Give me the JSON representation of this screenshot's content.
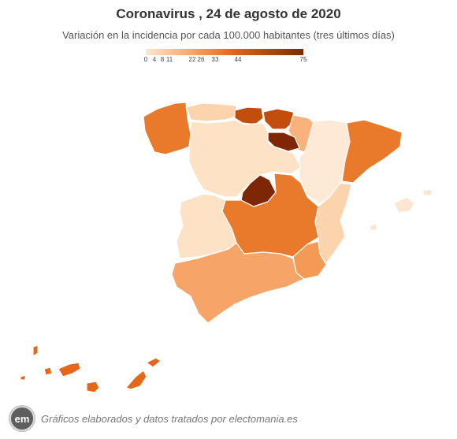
{
  "title": "Coronavirus , 24 de agosto de 2020",
  "subtitle": "Variación en la incidencia por cada 100.000 habitantes (tres últimos días)",
  "legend": {
    "min": 0,
    "max": 75,
    "ticks": [
      "0",
      "4",
      "8",
      "11",
      "22",
      "26",
      "33",
      "44",
      "75"
    ],
    "color_low": "#fde6cf",
    "color_high": "#7a2b02"
  },
  "regions": [
    {
      "name": "Galicia",
      "color": "#ea7a2b"
    },
    {
      "name": "Asturias",
      "color": "#fbd3ad"
    },
    {
      "name": "Cantabria",
      "color": "#c34d0b"
    },
    {
      "name": "País Vasco",
      "color": "#c34d0b"
    },
    {
      "name": "Navarra",
      "color": "#f9b27b"
    },
    {
      "name": "La Rioja",
      "color": "#7f2704"
    },
    {
      "name": "Aragón",
      "color": "#fde9d6"
    },
    {
      "name": "Cataluña",
      "color": "#ea7a2b"
    },
    {
      "name": "Castilla y León",
      "color": "#fde2c6"
    },
    {
      "name": "Madrid",
      "color": "#7f2704"
    },
    {
      "name": "Castilla-La Mancha",
      "color": "#ea7a2b"
    },
    {
      "name": "Extremadura",
      "color": "#fde2c6"
    },
    {
      "name": "Comunidad Valenciana",
      "color": "#fbd3ad"
    },
    {
      "name": "Murcia",
      "color": "#f39a55"
    },
    {
      "name": "Andalucía",
      "color": "#f6a468"
    },
    {
      "name": "Islas Baleares",
      "color": "#fde6cf"
    },
    {
      "name": "Canarias",
      "color": "#e5671a"
    }
  ],
  "footer": {
    "logo_text": "em",
    "credit": "Gráficos elaborados y datos tratados por electomania.es"
  }
}
